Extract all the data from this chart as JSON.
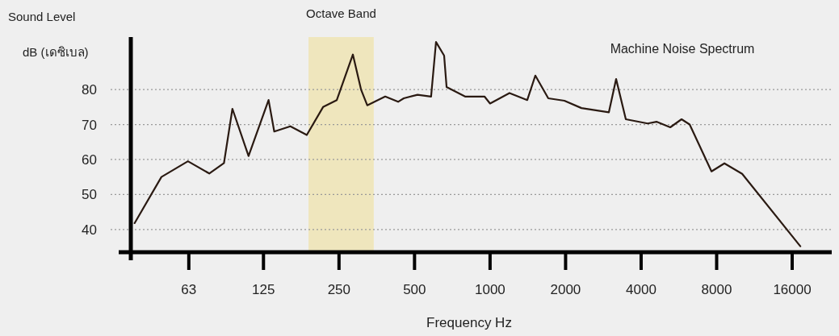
{
  "chart_data": {
    "type": "line",
    "title": "Machine Noise Spectrum",
    "xlabel": "Frequency Hz",
    "ylabel": "Sound Level\ndB (เดซิเบล)",
    "x": [
      38.3,
      49,
      62.5,
      76,
      87,
      94,
      109,
      131,
      138,
      160,
      186,
      216,
      245,
      284,
      306,
      324,
      382,
      430,
      453,
      514,
      582,
      609,
      656,
      671,
      795,
      950,
      1000,
      1195,
      1407,
      1515,
      1706,
      1978,
      2313,
      2975,
      3180,
      3476,
      4247,
      4605,
      5226,
      5797,
      6245,
      7630,
      8590,
      10110,
      17240
    ],
    "series": [
      {
        "color": "#2a1a12",
        "values": [
          41.8,
          55,
          59.5,
          56,
          59,
          74.5,
          61,
          77,
          68,
          69.5,
          67,
          75,
          77,
          90,
          80,
          75.5,
          78,
          76.5,
          77.5,
          78.5,
          78,
          93.6,
          89.7,
          80.7,
          78,
          78,
          76,
          79,
          77,
          84,
          77.5,
          76.8,
          74.7,
          73.5,
          83,
          71.5,
          70.3,
          70.8,
          69.2,
          71.5,
          70,
          56.6,
          58.9,
          55.9,
          35.2
        ]
      }
    ],
    "xlim": [
      37,
      23000
    ],
    "ylim": [
      33.5,
      95
    ],
    "log": "x",
    "xticks": [
      63,
      125,
      250,
      500,
      1000,
      2000,
      4000,
      8000,
      16000
    ],
    "yticks": [
      40,
      50,
      60,
      70,
      80
    ],
    "grid": "y",
    "line_style": "solid",
    "bands": [
      {
        "axis": "x",
        "from": 189,
        "to": 344,
        "label": "Octave Band",
        "color": "#efe4b0"
      }
    ]
  }
}
